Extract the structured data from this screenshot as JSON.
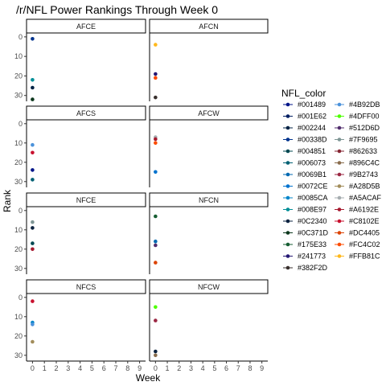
{
  "chart_data": {
    "type": "scatter",
    "title": "/r/NFL Power Rankings Through Week 0",
    "xlabel": "Week",
    "ylabel": "Rank",
    "x_ticks": [
      0,
      1,
      2,
      3,
      4,
      5,
      6,
      7,
      8,
      9
    ],
    "y_ticks": [
      0,
      10,
      20,
      30
    ],
    "xlim": [
      -0.5,
      9.5
    ],
    "ylim": [
      33,
      -2
    ],
    "y_reversed": true,
    "grid": false,
    "legend_position": "right",
    "legend": {
      "title": "NFL_color",
      "col1": [
        "#001489",
        "#001E62",
        "#002244",
        "#00338D",
        "#004851",
        "#006073",
        "#0069B1",
        "#0072CE",
        "#0085CA",
        "#008E97",
        "#0C2340",
        "#0C371D",
        "#175E33",
        "#241773",
        "#382F2D"
      ],
      "col2": [
        "#4B92DB",
        "#4DFF00",
        "#512D6D",
        "#7F9695",
        "#862633",
        "#896C4C",
        "#9B2743",
        "#A28D5B",
        "#A5ACAF",
        "#A6192E",
        "#C8102E",
        "#DC4405",
        "#FC4C02",
        "#FFB81C"
      ]
    },
    "panels": [
      {
        "name": "AFCE",
        "points": [
          {
            "x": 0,
            "y": 1,
            "color": "#00338D"
          },
          {
            "x": 0,
            "y": 22,
            "color": "#008E97"
          },
          {
            "x": 0,
            "y": 26,
            "color": "#002244"
          },
          {
            "x": 0,
            "y": 32,
            "color": "#0C371D"
          }
        ]
      },
      {
        "name": "AFCN",
        "points": [
          {
            "x": 0,
            "y": 4,
            "color": "#FFB81C"
          },
          {
            "x": 0,
            "y": 19,
            "color": "#241773"
          },
          {
            "x": 0,
            "y": 21,
            "color": "#FC4C02"
          },
          {
            "x": 0,
            "y": 31,
            "color": "#382F2D"
          }
        ]
      },
      {
        "name": "AFCS",
        "points": [
          {
            "x": 0,
            "y": 11,
            "color": "#4B92DB"
          },
          {
            "x": 0,
            "y": 15,
            "color": "#C8102E"
          },
          {
            "x": 0,
            "y": 24,
            "color": "#001489"
          },
          {
            "x": 0,
            "y": 29,
            "color": "#006073"
          }
        ]
      },
      {
        "name": "AFCW",
        "points": [
          {
            "x": 0,
            "y": 7,
            "color": "#A5ACAF"
          },
          {
            "x": 0,
            "y": 8,
            "color": "#A6192E"
          },
          {
            "x": 0,
            "y": 10,
            "color": "#FC4C02"
          },
          {
            "x": 0,
            "y": 25,
            "color": "#0072CE"
          }
        ]
      },
      {
        "name": "NFCE",
        "points": [
          {
            "x": 0,
            "y": 6,
            "color": "#7F9695"
          },
          {
            "x": 0,
            "y": 9,
            "color": "#0C2340"
          },
          {
            "x": 0,
            "y": 17,
            "color": "#004851"
          },
          {
            "x": 0,
            "y": 20,
            "color": "#A6192E"
          }
        ]
      },
      {
        "name": "NFCN",
        "points": [
          {
            "x": 0,
            "y": 3,
            "color": "#175E33"
          },
          {
            "x": 0,
            "y": 16,
            "color": "#0069B1"
          },
          {
            "x": 0,
            "y": 18,
            "color": "#512D6D"
          },
          {
            "x": 0,
            "y": 27,
            "color": "#DC4405"
          }
        ]
      },
      {
        "name": "NFCS",
        "points": [
          {
            "x": 0,
            "y": 2,
            "color": "#C8102E"
          },
          {
            "x": 0,
            "y": 13,
            "color": "#0085CA"
          },
          {
            "x": 0,
            "y": 14,
            "color": "#4B92DB"
          },
          {
            "x": 0,
            "y": 23,
            "color": "#A28D5B"
          }
        ]
      },
      {
        "name": "NFCW",
        "points": [
          {
            "x": 0,
            "y": 5,
            "color": "#4DFF00"
          },
          {
            "x": 0,
            "y": 12,
            "color": "#9B2743"
          },
          {
            "x": 0,
            "y": 28,
            "color": "#0C2340"
          },
          {
            "x": 0,
            "y": 30,
            "color": "#896C4C"
          }
        ]
      }
    ]
  }
}
